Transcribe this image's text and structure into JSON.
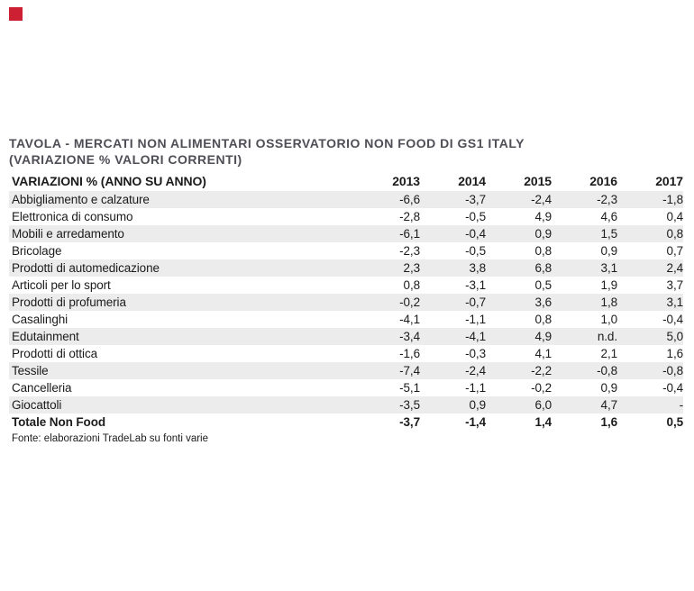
{
  "colors": {
    "accent_red": "#cd2032",
    "title_text": "#4e4e56",
    "body_text": "#1b1b1b",
    "row_alt_bg": "#ececec",
    "page_bg": "#ffffff"
  },
  "marker": {
    "label": "red-square"
  },
  "table": {
    "title_line1": "TAVOLA - MERCATI NON ALIMENTARI OSSERVATORIO NON FOOD DI GS1 ITALY",
    "title_line2": "(VARIAZIONE % VALORI CORRENTI)",
    "header": {
      "label": "VARIAZIONI % (ANNO SU ANNO)",
      "years": [
        "2013",
        "2014",
        "2015",
        "2016",
        "2017"
      ]
    },
    "rows": [
      {
        "label": "Abbigliamento e calzature",
        "values": [
          "-6,6",
          "-3,7",
          "-2,4",
          "-2,3",
          "-1,8"
        ]
      },
      {
        "label": "Elettronica di consumo",
        "values": [
          "-2,8",
          "-0,5",
          "4,9",
          "4,6",
          "0,4"
        ]
      },
      {
        "label": "Mobili e arredamento",
        "values": [
          "-6,1",
          "-0,4",
          "0,9",
          "1,5",
          "0,8"
        ]
      },
      {
        "label": "Bricolage",
        "values": [
          "-2,3",
          "-0,5",
          "0,8",
          "0,9",
          "0,7"
        ]
      },
      {
        "label": "Prodotti di automedicazione",
        "values": [
          "2,3",
          "3,8",
          "6,8",
          "3,1",
          "2,4"
        ]
      },
      {
        "label": "Articoli per lo sport",
        "values": [
          "0,8",
          "-3,1",
          "0,5",
          "1,9",
          "3,7"
        ]
      },
      {
        "label": "Prodotti di profumeria",
        "values": [
          "-0,2",
          "-0,7",
          "3,6",
          "1,8",
          "3,1"
        ]
      },
      {
        "label": "Casalinghi",
        "values": [
          "-4,1",
          "-1,1",
          "0,8",
          "1,0",
          "-0,4"
        ]
      },
      {
        "label": "Edutainment",
        "values": [
          "-3,4",
          "-4,1",
          "4,9",
          "n.d.",
          "5,0"
        ]
      },
      {
        "label": "Prodotti di ottica",
        "values": [
          "-1,6",
          "-0,3",
          "4,1",
          "2,1",
          "1,6"
        ]
      },
      {
        "label": "Tessile",
        "values": [
          "-7,4",
          "-2,4",
          "-2,2",
          "-0,8",
          "-0,8"
        ]
      },
      {
        "label": "Cancelleria",
        "values": [
          "-5,1",
          "-1,1",
          "-0,2",
          "0,9",
          "-0,4"
        ]
      },
      {
        "label": "Giocattoli",
        "values": [
          "-3,5",
          "0,9",
          "6,0",
          "4,7",
          "-"
        ]
      },
      {
        "label": "Totale Non Food",
        "values": [
          "-3,7",
          "-1,4",
          "1,4",
          "1,6",
          "0,5"
        ],
        "total": true
      }
    ],
    "footer": "Fonte: elaborazioni TradeLab su fonti varie"
  },
  "chart_data": {
    "type": "table",
    "title": "TAVOLA - MERCATI NON ALIMENTARI OSSERVATORIO NON FOOD DI GS1 ITALY (VARIAZIONE % VALORI CORRENTI)",
    "columns": [
      "VARIAZIONI % (ANNO SU ANNO)",
      "2013",
      "2014",
      "2015",
      "2016",
      "2017"
    ],
    "rows": [
      [
        "Abbigliamento e calzature",
        -6.6,
        -3.7,
        -2.4,
        -2.3,
        -1.8
      ],
      [
        "Elettronica di consumo",
        -2.8,
        -0.5,
        4.9,
        4.6,
        0.4
      ],
      [
        "Mobili e arredamento",
        -6.1,
        -0.4,
        0.9,
        1.5,
        0.8
      ],
      [
        "Bricolage",
        -2.3,
        -0.5,
        0.8,
        0.9,
        0.7
      ],
      [
        "Prodotti di automedicazione",
        2.3,
        3.8,
        6.8,
        3.1,
        2.4
      ],
      [
        "Articoli per lo sport",
        0.8,
        -3.1,
        0.5,
        1.9,
        3.7
      ],
      [
        "Prodotti di profumeria",
        -0.2,
        -0.7,
        3.6,
        1.8,
        3.1
      ],
      [
        "Casalinghi",
        -4.1,
        -1.1,
        0.8,
        1.0,
        -0.4
      ],
      [
        "Edutainment",
        -3.4,
        -4.1,
        4.9,
        "n.d.",
        5.0
      ],
      [
        "Prodotti di ottica",
        -1.6,
        -0.3,
        4.1,
        2.1,
        1.6
      ],
      [
        "Tessile",
        -7.4,
        -2.4,
        -2.2,
        -0.8,
        -0.8
      ],
      [
        "Cancelleria",
        -5.1,
        -1.1,
        -0.2,
        0.9,
        -0.4
      ],
      [
        "Giocattoli",
        -3.5,
        0.9,
        6.0,
        4.7,
        "-"
      ],
      [
        "Totale Non Food",
        -3.7,
        -1.4,
        1.4,
        1.6,
        0.5
      ]
    ],
    "source": "Fonte: elaborazioni TradeLab su fonti varie",
    "notes": "values are percentage year-over-year variations; decimal comma formatting; alternating row shading; last row is bold total"
  }
}
